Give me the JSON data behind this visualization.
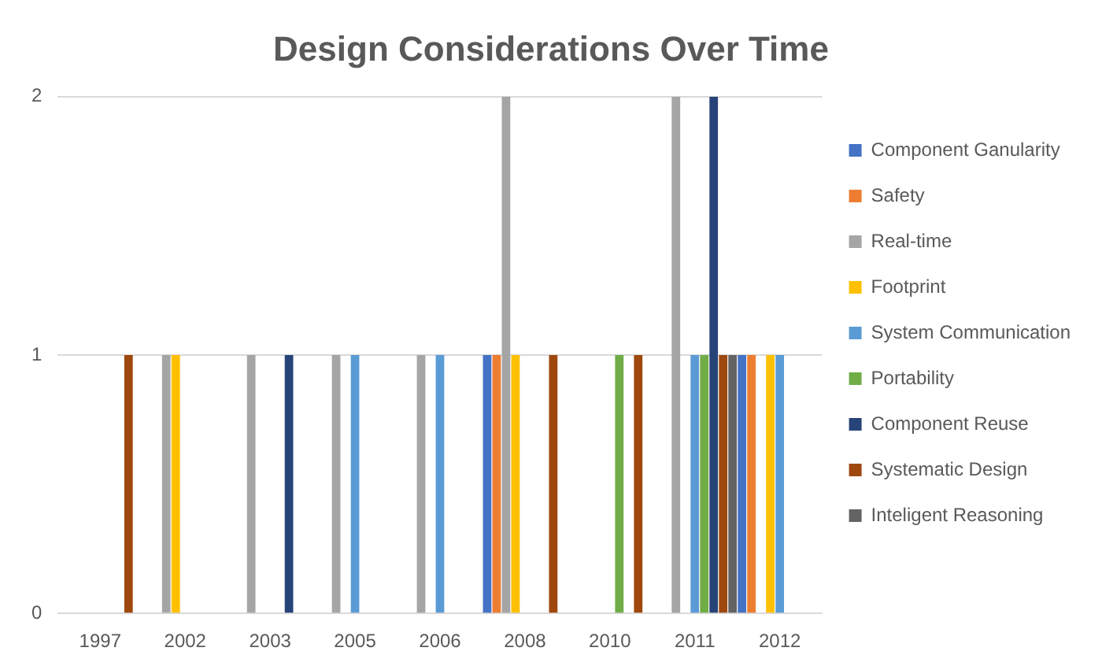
{
  "chart_data": {
    "type": "bar",
    "title": "Design Considerations Over Time",
    "categories": [
      "1997",
      "2002",
      "2003",
      "2005",
      "2006",
      "2008",
      "2010",
      "2011",
      "2012"
    ],
    "series": [
      {
        "name": "Component Ganularity",
        "color": "#4472c4",
        "values": [
          null,
          null,
          null,
          null,
          null,
          1,
          null,
          null,
          1
        ]
      },
      {
        "name": "Safety",
        "color": "#ed7d31",
        "values": [
          null,
          null,
          null,
          null,
          null,
          1,
          null,
          null,
          1
        ]
      },
      {
        "name": "Real-time",
        "color": "#a5a5a5",
        "values": [
          null,
          1,
          1,
          1,
          1,
          2,
          null,
          2,
          null
        ]
      },
      {
        "name": "Footprint",
        "color": "#ffc000",
        "values": [
          null,
          1,
          null,
          null,
          null,
          1,
          null,
          null,
          1
        ]
      },
      {
        "name": "System Communication",
        "color": "#5b9bd5",
        "values": [
          null,
          null,
          null,
          1,
          1,
          null,
          null,
          1,
          1
        ]
      },
      {
        "name": "Portability",
        "color": "#70ad47",
        "values": [
          null,
          null,
          null,
          null,
          null,
          null,
          1,
          1,
          null
        ]
      },
      {
        "name": "Component Reuse",
        "color": "#264478",
        "values": [
          null,
          null,
          1,
          null,
          null,
          null,
          null,
          2,
          null
        ]
      },
      {
        "name": "Systematic Design",
        "color": "#9e480e",
        "values": [
          1,
          null,
          null,
          null,
          null,
          1,
          1,
          1,
          null
        ]
      },
      {
        "name": "Inteligent Reasoning",
        "color": "#636363",
        "values": [
          null,
          null,
          null,
          null,
          null,
          null,
          null,
          1,
          null
        ]
      }
    ],
    "ylim": [
      0,
      2
    ],
    "yticks": [
      0,
      1,
      2
    ],
    "grid": "y",
    "legend": "right"
  }
}
